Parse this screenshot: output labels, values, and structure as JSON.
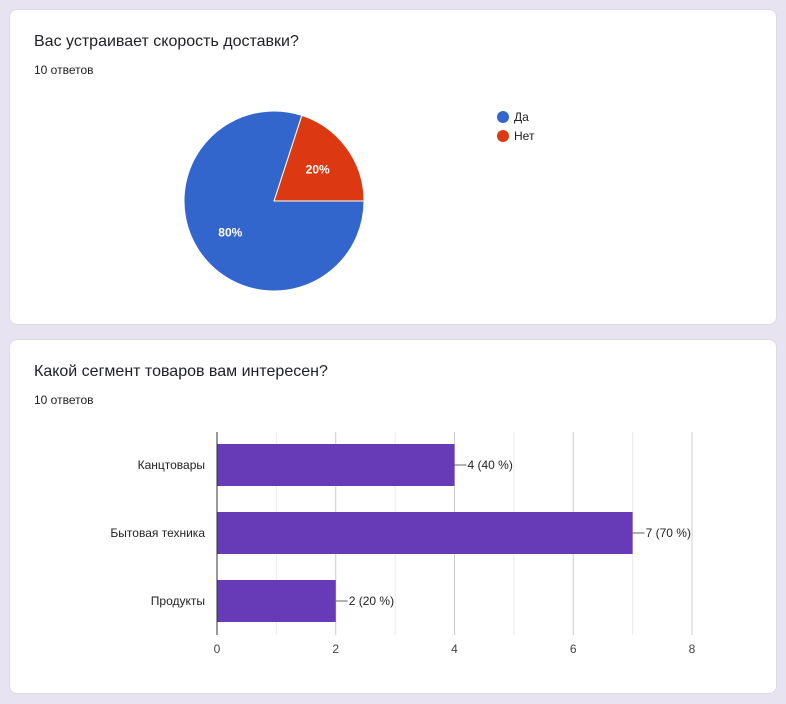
{
  "questions": [
    {
      "title": "Вас устраивает скорость доставки?",
      "count": "10 ответов",
      "chart_data": {
        "type": "pie",
        "slices": [
          {
            "label": "Да",
            "value": 80,
            "display": "80%",
            "color": "#3366cc"
          },
          {
            "label": "Нет",
            "value": 20,
            "display": "20%",
            "color": "#dc3912"
          }
        ],
        "legend": "right"
      }
    },
    {
      "title": "Какой сегмент товаров вам интересен?",
      "count": "10 ответов",
      "chart_data": {
        "type": "bar",
        "orientation": "horizontal",
        "categories": [
          "Канцтовары",
          "Бытовая техника",
          "Продукты"
        ],
        "values": [
          4,
          7,
          2
        ],
        "data_labels": [
          "4 (40 %)",
          "7 (70 %)",
          "2 (20 %)"
        ],
        "xlim": [
          0,
          8
        ],
        "xticks": [
          0,
          2,
          4,
          6,
          8
        ],
        "color": "#673ab7",
        "grid": true
      }
    }
  ]
}
